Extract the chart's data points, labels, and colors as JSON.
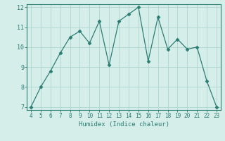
{
  "x": [
    4,
    5,
    6,
    7,
    8,
    9,
    10,
    11,
    12,
    13,
    14,
    15,
    16,
    17,
    18,
    19,
    20,
    21,
    22,
    23
  ],
  "y": [
    7.0,
    8.0,
    8.8,
    9.7,
    10.5,
    10.8,
    10.2,
    11.3,
    9.1,
    11.3,
    11.65,
    12.0,
    9.3,
    11.5,
    9.9,
    10.4,
    9.9,
    10.0,
    8.3,
    7.0
  ],
  "xlim_min": 3.6,
  "xlim_max": 23.4,
  "ylim_min": 6.85,
  "ylim_max": 12.15,
  "xticks": [
    4,
    5,
    6,
    7,
    8,
    9,
    10,
    11,
    12,
    13,
    14,
    15,
    16,
    17,
    18,
    19,
    20,
    21,
    22,
    23
  ],
  "yticks": [
    7,
    8,
    9,
    10,
    11,
    12
  ],
  "xlabel": "Humidex (Indice chaleur)",
  "line_color": "#2d7d74",
  "marker": "D",
  "marker_size": 2.5,
  "bg_color": "#d5eeea",
  "grid_color": "#aed4ce",
  "spine_color": "#2d7d74",
  "tick_color": "#2d7d74",
  "label_color": "#2d7d74",
  "tick_fontsize": 5.5,
  "label_fontsize": 6.5
}
